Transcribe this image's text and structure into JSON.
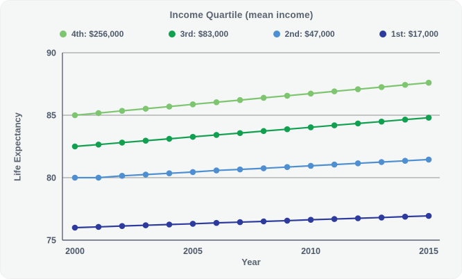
{
  "chart_data": {
    "type": "line",
    "title": "Income Quartile (mean income)",
    "xlabel": "Year",
    "ylabel": "Life Expectancy",
    "x": [
      2000,
      2001,
      2002,
      2003,
      2004,
      2005,
      2006,
      2007,
      2008,
      2009,
      2010,
      2011,
      2012,
      2013,
      2014,
      2015
    ],
    "xticks": [
      2000,
      2005,
      2010,
      2015
    ],
    "yticks": [
      75,
      80,
      85,
      90
    ],
    "xlim": [
      2000,
      2015
    ],
    "ylim": [
      75,
      90
    ],
    "grid": true,
    "legend_position": "top",
    "series": [
      {
        "name": "4th: $256,000",
        "color": "#7dc56f",
        "values": [
          85.0,
          85.17,
          85.35,
          85.52,
          85.69,
          85.87,
          86.04,
          86.21,
          86.39,
          86.56,
          86.73,
          86.91,
          87.08,
          87.25,
          87.43,
          87.6
        ]
      },
      {
        "name": "3rd: $83,000",
        "color": "#10a04f",
        "values": [
          82.5,
          82.65,
          82.81,
          82.96,
          83.11,
          83.27,
          83.42,
          83.57,
          83.73,
          83.88,
          84.03,
          84.19,
          84.34,
          84.49,
          84.65,
          84.8
        ]
      },
      {
        "name": "2nd: $47,000",
        "color": "#4d8fd1",
        "values": [
          80.0,
          80.0,
          80.15,
          80.25,
          80.35,
          80.45,
          80.58,
          80.66,
          80.75,
          80.85,
          80.95,
          81.05,
          81.15,
          81.25,
          81.35,
          81.45
        ]
      },
      {
        "name": "1st: $17,000",
        "color": "#2c3b9d",
        "values": [
          76.0,
          76.06,
          76.13,
          76.19,
          76.25,
          76.31,
          76.38,
          76.44,
          76.5,
          76.56,
          76.63,
          76.69,
          76.75,
          76.81,
          76.88,
          76.94
        ]
      }
    ],
    "colors": {
      "card_background": "#f5f6f6",
      "grid_color": "#a6a6a6",
      "axis_color": "#5d6472",
      "text_color": "#4e5a6b"
    }
  }
}
